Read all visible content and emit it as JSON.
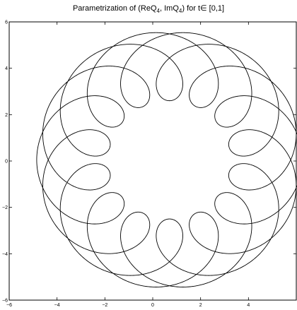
{
  "chart_data": {
    "type": "line",
    "title": "Parametrization of (ReQ",
    "title_parts": {
      "lead": "Parametrization of (ReQ",
      "sub1": "4",
      "mid": ", ImQ",
      "sub2": "4",
      "tail": ") for t∈  [0,1]"
    },
    "xlabel": "",
    "ylabel": "",
    "xlim": [
      -6,
      6
    ],
    "ylim": [
      -6,
      6
    ],
    "grid": false,
    "x_ticks": [
      -6,
      -4,
      -2,
      0,
      2,
      4
    ],
    "y_ticks": [
      -6,
      -4,
      -2,
      0,
      2,
      4,
      6
    ],
    "x_tick_labels": [
      "−6",
      "−4",
      "−2",
      "0",
      "2",
      "4"
    ],
    "y_tick_labels": [
      "−6",
      "−4",
      "−2",
      "0",
      "2",
      "4",
      "6"
    ],
    "curve": {
      "param_range": [
        0,
        1
      ],
      "base_circle": {
        "center": [
          0.7,
          0.05
        ],
        "radius": 4.05,
        "turns": 3
      },
      "epicycle": {
        "radius": 1.5,
        "turns": 17
      },
      "line_color": "#000000"
    }
  }
}
